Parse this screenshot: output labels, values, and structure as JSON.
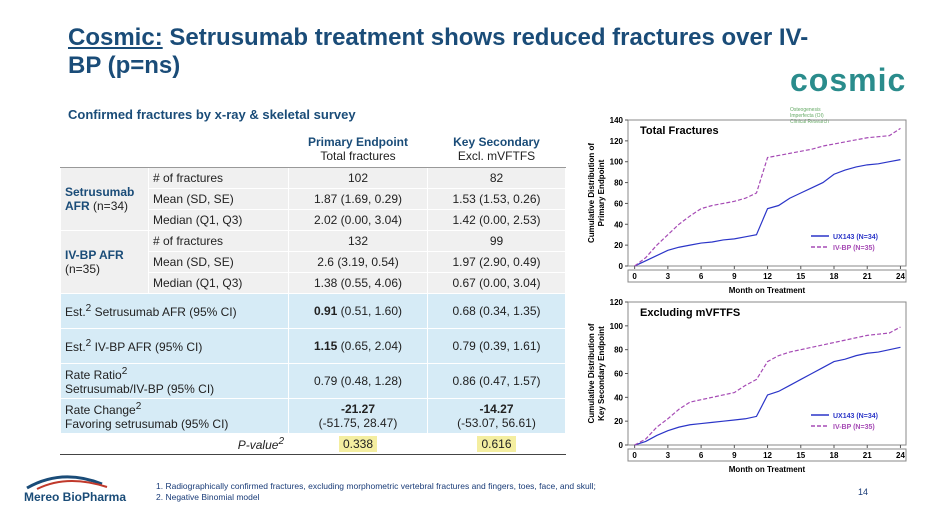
{
  "header": {
    "brand": "Cosmic:",
    "title": "Setrusumab treatment shows reduced fractures over IV-BP (p=ns)"
  },
  "logo": {
    "name": "cosmic",
    "tagline": "Osteogenesis Imperfecta (OI) Clinical Research"
  },
  "table": {
    "title": "Confirmed fractures by x-ray & skeletal survey",
    "columns": [
      {
        "name": "Primary Endpoint",
        "sub": "Total fractures"
      },
      {
        "name": "Key Secondary",
        "sub": "Excl. mVFTFS"
      }
    ],
    "groups": [
      {
        "name": "Setrusumab AFR",
        "n": "(n=34)",
        "rows": [
          {
            "label": "# of fractures",
            "values": [
              "102",
              "82"
            ]
          },
          {
            "label": "Mean (SD, SE)",
            "values": [
              "1.87 (1.69, 0.29)",
              "1.53 (1.53, 0.26)"
            ]
          },
          {
            "label": "Median (Q1, Q3)",
            "values": [
              "2.02 (0.00, 3.04)",
              "1.42 (0.00, 2.53)"
            ]
          }
        ]
      },
      {
        "name": "IV-BP AFR",
        "n": "(n=35)",
        "rows": [
          {
            "label": "# of fractures",
            "values": [
              "132",
              "99"
            ]
          },
          {
            "label": "Mean (SD, SE)",
            "values": [
              "2.6 (3.19, 0.54)",
              "1.97 (2.90, 0.49)"
            ]
          },
          {
            "label": "Median (Q1, Q3)",
            "values": [
              "1.38 (0.55, 4.06)",
              "0.67 (0.00, 3.04)"
            ]
          }
        ]
      }
    ],
    "estimates": [
      {
        "label": "Est.",
        "sup": "2",
        "rest": "Setrusumab AFR (95% CI)",
        "cells": [
          {
            "est": "0.91",
            "ci": "(0.51, 1.60)",
            "bold": true
          },
          {
            "est": "0.68",
            "ci": "(0.34, 1.35)",
            "bold": false
          }
        ]
      },
      {
        "label": "Est.",
        "sup": "2",
        "rest": "IV-BP AFR (95% CI)",
        "cells": [
          {
            "est": "1.15",
            "ci": "(0.65, 2.04)",
            "bold": true
          },
          {
            "est": "0.79",
            "ci": "(0.39, 1.61)",
            "bold": false
          }
        ]
      },
      {
        "label": "Rate Ratio",
        "sup": "2",
        "rest": "Setrusumab/IV-BP (95% CI)",
        "cells": [
          {
            "est": "0.79",
            "ci": "(0.48, 1.28)",
            "bold": false
          },
          {
            "est": "0.86",
            "ci": "(0.47, 1.57)",
            "bold": false
          }
        ]
      },
      {
        "label": "Rate Change",
        "sup": "2",
        "rest": "Favoring setrusumab (95% CI)",
        "cells": [
          {
            "est": "-21.27",
            "ci": "(-51.75, 28.47)",
            "bold": true
          },
          {
            "est": "-14.27",
            "ci": "(-53.07, 56.61)",
            "bold": true
          }
        ]
      }
    ],
    "pvalue": {
      "label": "P-value",
      "sup": "2",
      "values": [
        "0.338",
        "0.616"
      ]
    }
  },
  "chart_data": [
    {
      "type": "line",
      "title": "Total Fractures",
      "ylabel": [
        "Cumulative Distribution of",
        "Primary Endpoint"
      ],
      "xlabel": "Month on Treatment",
      "x": [
        0,
        1,
        2,
        3,
        4,
        5,
        6,
        7,
        8,
        9,
        10,
        11,
        12,
        13,
        14,
        15,
        16,
        17,
        18,
        19,
        20,
        21,
        22,
        23,
        24
      ],
      "xlim": [
        -0.6,
        24.5
      ],
      "xticks": [
        0,
        3,
        6,
        9,
        12,
        15,
        18,
        21,
        24
      ],
      "ylim": [
        0,
        140
      ],
      "yticks": [
        0,
        20,
        40,
        60,
        80,
        100,
        120,
        140
      ],
      "legend": "lower right",
      "series": [
        {
          "name": "UX143 (N=34)",
          "color": "#2b35c8",
          "dash": false,
          "values": [
            0,
            5,
            10,
            15,
            18,
            20,
            22,
            23,
            25,
            26,
            28,
            30,
            55,
            58,
            65,
            70,
            75,
            80,
            88,
            92,
            95,
            97,
            98,
            100,
            102
          ]
        },
        {
          "name": "IV-BP (N=35)",
          "color": "#a64bb5",
          "dash": true,
          "values": [
            0,
            8,
            20,
            30,
            40,
            48,
            55,
            58,
            60,
            62,
            65,
            70,
            104,
            106,
            108,
            110,
            112,
            115,
            117,
            119,
            121,
            123,
            124,
            125,
            132
          ]
        }
      ]
    },
    {
      "type": "line",
      "title": "Excluding mVFTFS",
      "ylabel": [
        "Cumulative Distribution of",
        "Key Secondary Endpoint"
      ],
      "xlabel": "Month on Treatment",
      "x": [
        0,
        1,
        2,
        3,
        4,
        5,
        6,
        7,
        8,
        9,
        10,
        11,
        12,
        13,
        14,
        15,
        16,
        17,
        18,
        19,
        20,
        21,
        22,
        23,
        24
      ],
      "xlim": [
        -0.6,
        24.5
      ],
      "xticks": [
        0,
        3,
        6,
        9,
        12,
        15,
        18,
        21,
        24
      ],
      "ylim": [
        0,
        120
      ],
      "yticks": [
        0,
        20,
        40,
        60,
        80,
        100,
        120
      ],
      "legend": "lower right",
      "series": [
        {
          "name": "UX143 (N=34)",
          "color": "#2b35c8",
          "dash": false,
          "values": [
            0,
            3,
            8,
            12,
            15,
            17,
            18,
            19,
            20,
            21,
            22,
            24,
            42,
            45,
            50,
            55,
            60,
            65,
            70,
            72,
            75,
            77,
            78,
            80,
            82
          ]
        },
        {
          "name": "IV-BP (N=35)",
          "color": "#a64bb5",
          "dash": true,
          "values": [
            0,
            5,
            15,
            22,
            30,
            36,
            38,
            40,
            42,
            44,
            50,
            55,
            70,
            75,
            78,
            80,
            82,
            84,
            86,
            88,
            90,
            92,
            93,
            94,
            99
          ]
        }
      ]
    }
  ],
  "footer": {
    "notes": [
      "1. Radiographically confirmed fractures, excluding morphometric vertebral fractures and fingers, toes, face, and skull;",
      "2. Negative Binomial model"
    ],
    "page": "14",
    "company": "Mereo BioPharma"
  }
}
